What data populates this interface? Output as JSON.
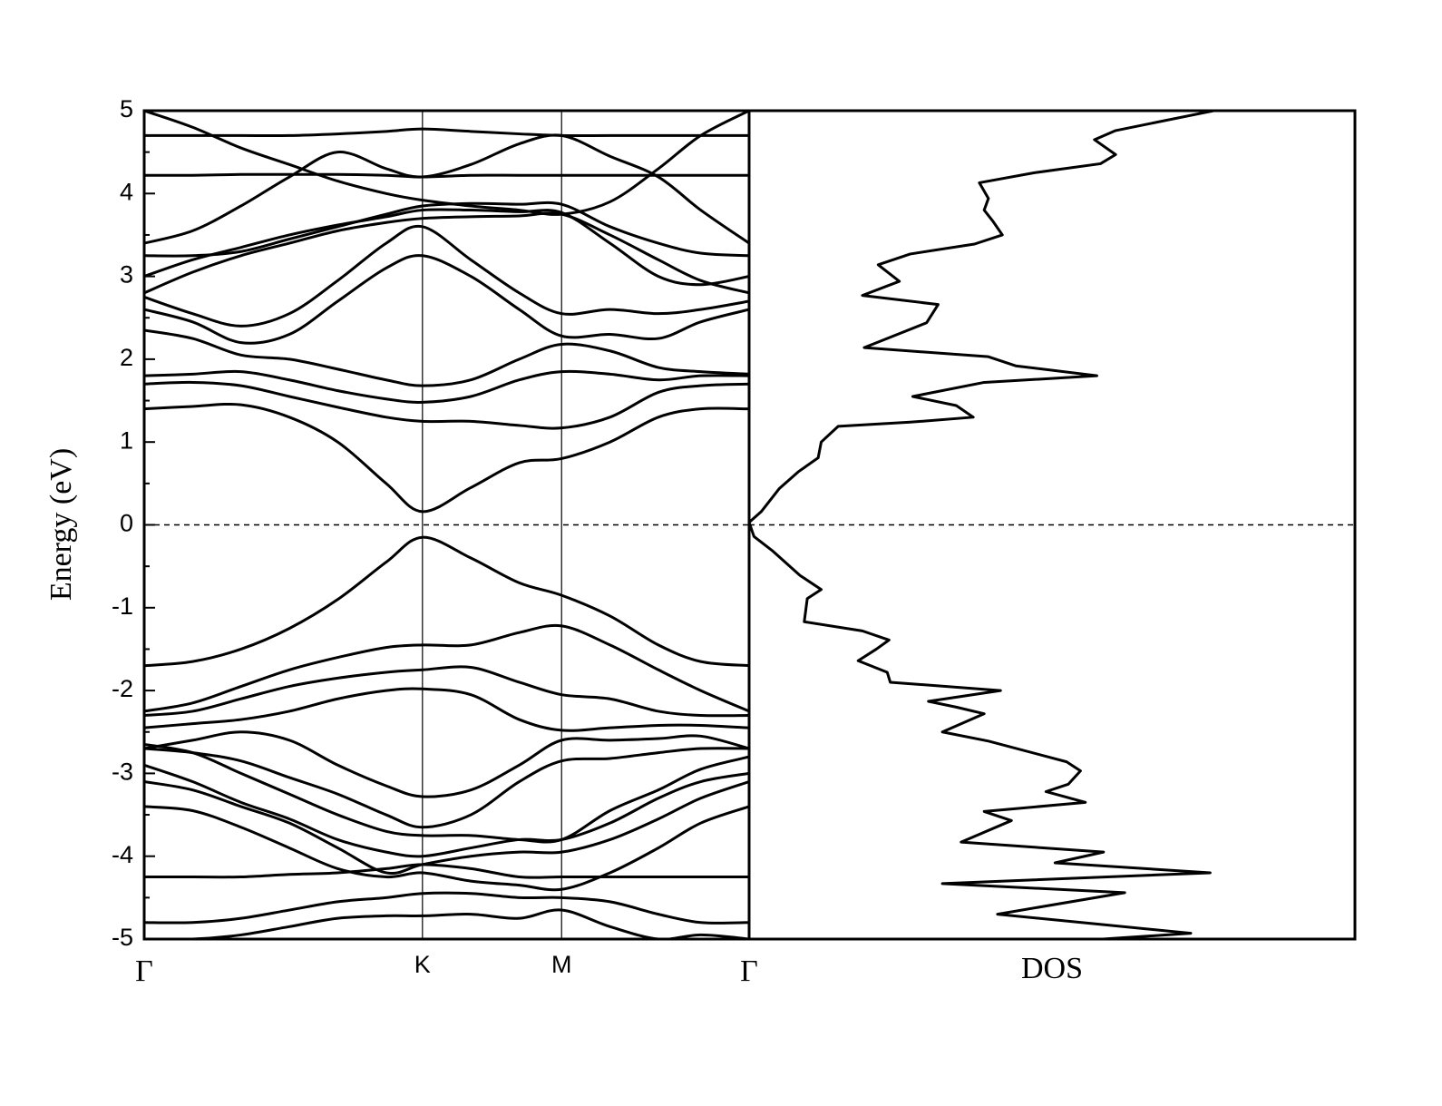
{
  "chart_data": [
    {
      "type": "bands",
      "ylabel": "Energy (eV)",
      "x": [
        0,
        0.08,
        0.16,
        0.24,
        0.32,
        0.4,
        0.46,
        0.54,
        0.62,
        0.69,
        0.77,
        0.85,
        0.92,
        1.0
      ],
      "xlim": [
        0,
        1
      ],
      "xticks": [
        {
          "value": 0,
          "label": "Γ"
        },
        {
          "value": 0.46,
          "label": "K"
        },
        {
          "value": 0.69,
          "label": "M"
        },
        {
          "value": 1.0,
          "label": "Γ"
        }
      ],
      "ylim": [
        -5,
        5
      ],
      "yticks": [
        5,
        4,
        3,
        2,
        1,
        0,
        -1,
        -2,
        -3,
        -4,
        -5
      ],
      "hline": 0,
      "color": "#000000",
      "series": [
        {
          "values": [
            1.4,
            1.43,
            1.45,
            1.3,
            1.0,
            0.5,
            0.16,
            0.45,
            0.75,
            0.8,
            1.0,
            1.3,
            1.4,
            1.4
          ]
        },
        {
          "values": [
            1.7,
            1.72,
            1.68,
            1.55,
            1.42,
            1.3,
            1.25,
            1.25,
            1.2,
            1.17,
            1.3,
            1.6,
            1.68,
            1.7
          ]
        },
        {
          "values": [
            1.8,
            1.82,
            1.85,
            1.75,
            1.62,
            1.52,
            1.48,
            1.55,
            1.75,
            1.85,
            1.82,
            1.75,
            1.8,
            1.8
          ]
        },
        {
          "values": [
            2.35,
            2.25,
            2.05,
            2.0,
            1.88,
            1.75,
            1.68,
            1.75,
            2.0,
            2.18,
            2.1,
            1.9,
            1.85,
            1.82
          ]
        },
        {
          "values": [
            2.6,
            2.45,
            2.2,
            2.3,
            2.7,
            3.1,
            3.25,
            3.0,
            2.6,
            2.28,
            2.3,
            2.25,
            2.45,
            2.6
          ]
        },
        {
          "values": [
            2.75,
            2.55,
            2.4,
            2.55,
            2.95,
            3.4,
            3.6,
            3.2,
            2.8,
            2.55,
            2.6,
            2.55,
            2.6,
            2.7
          ]
        },
        {
          "values": [
            2.8,
            3.05,
            3.25,
            3.4,
            3.55,
            3.65,
            3.7,
            3.72,
            3.73,
            3.75,
            3.5,
            3.2,
            2.95,
            2.8
          ]
        },
        {
          "values": [
            3.0,
            3.2,
            3.35,
            3.5,
            3.62,
            3.72,
            3.8,
            3.8,
            3.78,
            3.77,
            3.4,
            3.0,
            2.9,
            3.0
          ]
        },
        {
          "values": [
            3.25,
            3.25,
            3.3,
            3.45,
            3.6,
            3.75,
            3.85,
            3.88,
            3.87,
            3.87,
            3.6,
            3.4,
            3.28,
            3.25
          ]
        },
        {
          "values": [
            3.4,
            3.55,
            3.85,
            4.2,
            4.5,
            4.3,
            4.2,
            4.35,
            4.6,
            4.7,
            4.45,
            4.2,
            3.8,
            3.4
          ]
        },
        {
          "values": [
            4.22,
            4.22,
            4.23,
            4.23,
            4.23,
            4.22,
            4.2,
            4.22,
            4.22,
            4.22,
            4.22,
            4.22,
            4.22,
            4.22
          ]
        },
        {
          "values": [
            4.7,
            4.7,
            4.7,
            4.7,
            4.72,
            4.75,
            4.78,
            4.75,
            4.72,
            4.7,
            4.7,
            4.7,
            4.7,
            4.7
          ]
        },
        {
          "values": [
            5.0,
            4.8,
            4.55,
            4.35,
            4.15,
            4.0,
            3.92,
            3.85,
            3.8,
            3.75,
            3.9,
            4.3,
            4.7,
            5.0
          ]
        },
        {
          "values": [
            -1.7,
            -1.65,
            -1.5,
            -1.25,
            -0.9,
            -0.45,
            -0.15,
            -0.4,
            -0.7,
            -0.85,
            -1.1,
            -1.45,
            -1.65,
            -1.7
          ]
        },
        {
          "values": [
            -2.25,
            -2.15,
            -1.95,
            -1.75,
            -1.6,
            -1.48,
            -1.45,
            -1.45,
            -1.3,
            -1.22,
            -1.45,
            -1.75,
            -2.0,
            -2.25
          ]
        },
        {
          "values": [
            -2.3,
            -2.25,
            -2.1,
            -1.95,
            -1.85,
            -1.78,
            -1.75,
            -1.72,
            -1.9,
            -2.05,
            -2.1,
            -2.25,
            -2.3,
            -2.3
          ]
        },
        {
          "values": [
            -2.45,
            -2.4,
            -2.35,
            -2.25,
            -2.1,
            -2.0,
            -1.98,
            -2.05,
            -2.35,
            -2.48,
            -2.45,
            -2.42,
            -2.42,
            -2.45
          ]
        },
        {
          "values": [
            -2.7,
            -2.6,
            -2.5,
            -2.6,
            -2.9,
            -3.15,
            -3.28,
            -3.2,
            -2.9,
            -2.6,
            -2.6,
            -2.58,
            -2.55,
            -2.7
          ]
        },
        {
          "values": [
            -2.7,
            -2.75,
            -2.85,
            -3.05,
            -3.25,
            -3.5,
            -3.65,
            -3.5,
            -3.1,
            -2.85,
            -2.82,
            -2.75,
            -2.7,
            -2.7
          ]
        },
        {
          "values": [
            -2.65,
            -2.75,
            -3.0,
            -3.25,
            -3.5,
            -3.7,
            -3.75,
            -3.75,
            -3.8,
            -3.8,
            -3.45,
            -3.2,
            -2.95,
            -2.8
          ]
        },
        {
          "values": [
            -2.9,
            -3.1,
            -3.35,
            -3.55,
            -3.8,
            -3.95,
            -4.0,
            -3.9,
            -3.8,
            -3.8,
            -3.6,
            -3.3,
            -3.1,
            -3.0
          ]
        },
        {
          "values": [
            -3.1,
            -3.2,
            -3.4,
            -3.6,
            -3.9,
            -4.2,
            -4.1,
            -4.0,
            -3.95,
            -3.95,
            -3.8,
            -3.55,
            -3.3,
            -3.1
          ]
        },
        {
          "values": [
            -3.4,
            -3.45,
            -3.65,
            -3.9,
            -4.15,
            -4.25,
            -4.2,
            -4.3,
            -4.35,
            -4.4,
            -4.2,
            -3.9,
            -3.6,
            -3.4
          ]
        },
        {
          "values": [
            -4.25,
            -4.25,
            -4.25,
            -4.22,
            -4.2,
            -4.15,
            -4.1,
            -4.15,
            -4.25,
            -4.25,
            -4.25,
            -4.25,
            -4.25,
            -4.25
          ]
        },
        {
          "values": [
            -4.8,
            -4.8,
            -4.75,
            -4.65,
            -4.55,
            -4.5,
            -4.45,
            -4.45,
            -4.5,
            -4.5,
            -4.55,
            -4.7,
            -4.8,
            -4.8
          ]
        },
        {
          "values": [
            -5.0,
            -5.0,
            -4.95,
            -4.85,
            -4.75,
            -4.72,
            -4.72,
            -4.7,
            -4.75,
            -4.65,
            -4.85,
            -5.0,
            -4.95,
            -5.0
          ]
        }
      ]
    },
    {
      "type": "dos",
      "xlabel": "DOS",
      "xlim": [
        0,
        100
      ],
      "ylim": [
        -5,
        5
      ],
      "hline": 0,
      "color": "#000000",
      "energy": [
        5.0,
        4.76,
        4.65,
        4.47,
        4.36,
        4.25,
        4.13,
        3.94,
        3.8,
        3.66,
        3.5,
        3.39,
        3.27,
        3.14,
        2.94,
        2.77,
        2.66,
        2.44,
        2.14,
        2.03,
        1.92,
        1.8,
        1.72,
        1.55,
        1.44,
        1.3,
        1.24,
        1.19,
        1.0,
        0.81,
        0.64,
        0.44,
        0.16,
        0.03,
        -0.14,
        -0.31,
        -0.61,
        -0.78,
        -0.89,
        -1.17,
        -1.28,
        -1.39,
        -1.5,
        -1.64,
        -1.78,
        -1.9,
        -2.0,
        -2.13,
        -2.2,
        -2.28,
        -2.5,
        -2.61,
        -2.86,
        -2.97,
        -3.13,
        -3.22,
        -3.35,
        -3.46,
        -3.57,
        -3.83,
        -3.95,
        -4.08,
        -4.2,
        -4.33,
        -4.44,
        -4.7,
        -4.93,
        -5.0
      ],
      "dos": [
        76.7,
        60.5,
        57,
        60.5,
        58,
        47,
        38,
        39.5,
        38.8,
        40.3,
        41.8,
        37.2,
        26.6,
        21.3,
        24.8,
        18.7,
        31.2,
        29.3,
        19,
        39.5,
        44,
        57.4,
        38.8,
        27,
        34.2,
        37,
        26.6,
        14.7,
        11.9,
        11.4,
        8.1,
        5,
        2,
        0,
        0.8,
        3.8,
        8.4,
        11.9,
        9.6,
        9.1,
        18.7,
        23.1,
        21,
        18,
        22.8,
        23.3,
        41.5,
        29.6,
        34.2,
        38.8,
        31.9,
        39.5,
        52.4,
        54.7,
        52.7,
        49,
        55.5,
        38.8,
        43.3,
        35,
        58.5,
        50.5,
        76.1,
        31.9,
        62,
        41,
        72.9,
        58.4
      ]
    }
  ]
}
